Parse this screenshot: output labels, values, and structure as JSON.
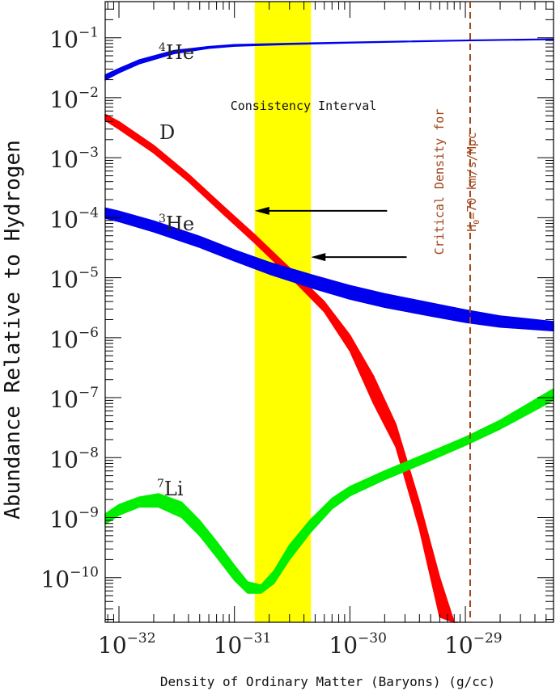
{
  "chart_data": {
    "type": "area",
    "xlabel": "Density of Ordinary Matter (Baryons) (g/cc)",
    "ylabel": "Abundance Relative to Hydrogen",
    "x_scale": "log",
    "y_scale": "log",
    "xlim": [
      7.6e-33,
      5.8e-29
    ],
    "ylim": [
      1.8e-11,
      0.4
    ],
    "x_ticks": [
      {
        "base": "10",
        "exp": "−32",
        "value": 1e-32
      },
      {
        "base": "10",
        "exp": "−31",
        "value": 1e-31
      },
      {
        "base": "10",
        "exp": "−30",
        "value": 1e-30
      },
      {
        "base": "10",
        "exp": "−29",
        "value": 1e-29
      }
    ],
    "y_ticks": [
      {
        "base": "10",
        "exp": "−1",
        "value": 0.1
      },
      {
        "base": "10",
        "exp": "−2",
        "value": 0.01
      },
      {
        "base": "10",
        "exp": "−3",
        "value": 0.001
      },
      {
        "base": "10",
        "exp": "−4",
        "value": 0.0001
      },
      {
        "base": "10",
        "exp": "−5",
        "value": 1e-05
      },
      {
        "base": "10",
        "exp": "−6",
        "value": 1e-06
      },
      {
        "base": "10",
        "exp": "−7",
        "value": 1e-07
      },
      {
        "base": "10",
        "exp": "−8",
        "value": 1e-08
      },
      {
        "base": "10",
        "exp": "−9",
        "value": 1e-09
      },
      {
        "base": "10",
        "exp": "−10",
        "value": 1e-10
      }
    ],
    "series": [
      {
        "name": "He",
        "label_sup": "4",
        "label_main": "He",
        "color": "#0000ee",
        "x": [
          7.6e-33,
          1e-32,
          1.5e-32,
          3e-32,
          6e-32,
          1e-31,
          3e-31,
          1e-30,
          3e-30,
          1e-29,
          5.8e-29
        ],
        "low": [
          0.0198,
          0.026,
          0.0368,
          0.0545,
          0.0665,
          0.0725,
          0.0775,
          0.082,
          0.0855,
          0.089,
          0.0935
        ],
        "high": [
          0.024,
          0.0307,
          0.0427,
          0.0612,
          0.0712,
          0.0765,
          0.0805,
          0.084,
          0.0875,
          0.091,
          0.0955
        ]
      },
      {
        "name": "D",
        "label_sup": "",
        "label_main": "D",
        "color": "#ff0000",
        "x": [
          7.6e-33,
          1e-32,
          2e-32,
          4e-32,
          8e-32,
          1.5e-31,
          3e-31,
          6e-31,
          1e-30,
          1.6e-30,
          2.5e-30,
          4e-30,
          6e-30,
          8e-30,
          8.6e-30
        ],
        "low": [
          0.0042,
          0.003,
          0.0012,
          0.0004,
          0.000115,
          3.8e-05,
          1.05e-05,
          2.7e-06,
          6e-07,
          8e-08,
          1.5e-08,
          6.5e-10,
          2.2e-11,
          1.8e-11,
          1.8e-11
        ],
        "high": [
          0.0053,
          0.004,
          0.0016,
          0.00053,
          0.000155,
          5.2e-05,
          1.45e-05,
          4e-06,
          1.1e-06,
          2.3e-07,
          3.6e-08,
          1.8e-09,
          1e-10,
          1.8e-11,
          1.8e-11
        ]
      },
      {
        "name": "He",
        "label_sup": "3",
        "label_main": "He",
        "color": "#0000ee",
        "x": [
          7.6e-33,
          1e-32,
          2e-32,
          5e-32,
          1e-31,
          2e-31,
          5e-31,
          1e-30,
          2e-30,
          5e-30,
          1e-29,
          2e-29,
          5.8e-29
        ],
        "low": [
          9.8e-05,
          8.6e-05,
          5.8e-05,
          3.2e-05,
          1.9e-05,
          1.15e-05,
          6.5e-06,
          4.4e-06,
          3.2e-06,
          2.3e-06,
          1.8e-06,
          1.5e-06,
          1.3e-06
        ],
        "high": [
          0.000145,
          0.000128,
          8.8e-05,
          4.9e-05,
          2.9e-05,
          1.8e-05,
          1.07e-05,
          7.4e-06,
          5.4e-06,
          3.8e-06,
          2.9e-06,
          2.3e-06,
          1.85e-06
        ]
      },
      {
        "name": "Li",
        "label_sup": "7",
        "label_main": "Li",
        "color": "#00ee00",
        "x": [
          7.6e-33,
          1e-32,
          1.5e-32,
          2.2e-32,
          3.5e-32,
          5e-32,
          7e-32,
          1e-31,
          1.3e-31,
          1.7e-31,
          2.2e-31,
          3e-31,
          4.5e-31,
          7e-31,
          1e-30,
          2e-30,
          5e-30,
          1e-29,
          2e-29,
          5.8e-29
        ],
        "low": [
          7.8e-10,
          1.1e-09,
          1.5e-09,
          1.5e-09,
          1e-09,
          5e-10,
          2.2e-10,
          9e-11,
          5.5e-11,
          5.5e-11,
          8e-11,
          2e-10,
          5.5e-10,
          1.4e-09,
          2.3e-09,
          4.3e-09,
          9e-09,
          1.6e-08,
          3e-08,
          9e-08
        ],
        "high": [
          1.15e-09,
          1.65e-09,
          2.2e-09,
          2.5e-09,
          1.8e-09,
          9e-10,
          4e-10,
          1.6e-10,
          8.5e-11,
          7.5e-11,
          1.3e-10,
          3.5e-10,
          9e-10,
          2.1e-09,
          3.3e-09,
          6e-09,
          1.25e-08,
          2.2e-08,
          4.2e-08,
          1.4e-07
        ]
      }
    ],
    "band": {
      "label": "Consistency Interval",
      "x_range": [
        1.5e-31,
        4.6e-31
      ],
      "color": "#ffff00"
    },
    "critical_line": {
      "x": 1.1e-29,
      "color": "#a0441a",
      "line1": "Critical Density for",
      "line2_pre": "H",
      "line2_sub": "0",
      "line2_post": "=70 km/s/Mpc"
    },
    "arrows": [
      {
        "tip_x": 1.5e-31,
        "tip_y": 0.00013,
        "tail_x": 2.1e-30
      },
      {
        "tip_x": 4.6e-31,
        "tip_y": 2.2e-05,
        "tail_x": 3.1e-30
      }
    ]
  }
}
